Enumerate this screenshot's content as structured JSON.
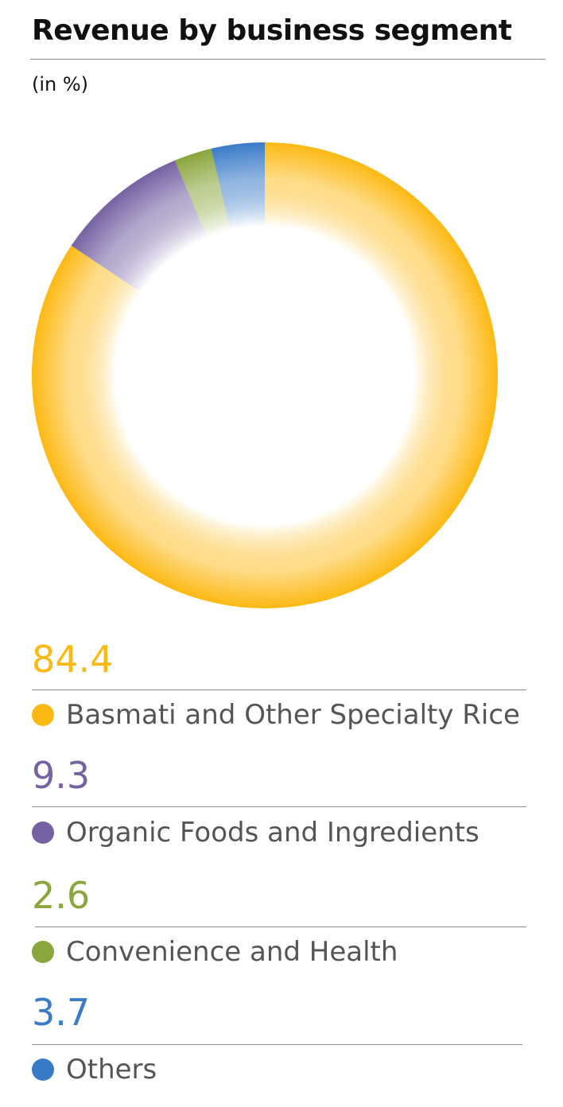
{
  "title": "Revenue by business segment",
  "subtitle": "(in %)",
  "colors": {
    "basmati": "#FDB913",
    "organic": "#7562A3",
    "convenience": "#8AA63C",
    "others": "#3A7BC8"
  },
  "chart_data": {
    "type": "pie",
    "title": "Revenue by business segment",
    "subtitle": "(in %)",
    "donut": true,
    "legend_position": "bottom",
    "categories": [
      "Basmati and Other Specialty Rice",
      "Organic Foods and Ingredients",
      "Convenience and Health",
      "Others"
    ],
    "values": [
      84.4,
      9.3,
      2.6,
      3.7
    ],
    "value_labels": [
      "84.4",
      "9.3",
      "2.6",
      "3.7"
    ],
    "colors": [
      "#FDB913",
      "#7562A3",
      "#8AA63C",
      "#3A7BC8"
    ]
  }
}
